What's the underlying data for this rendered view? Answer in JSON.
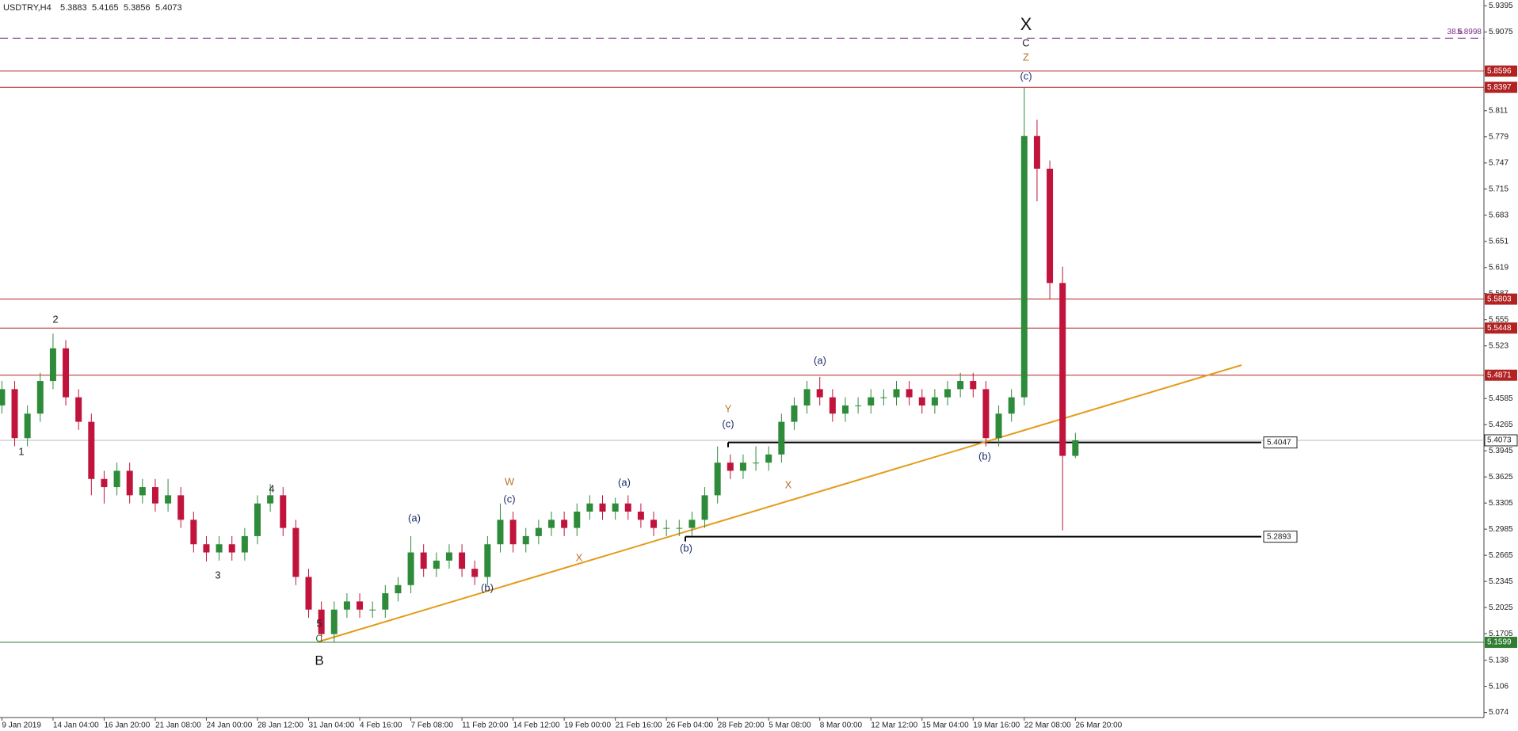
{
  "chart_data": {
    "type": "candlestick",
    "symbol": "USDTRY,H4",
    "categories": [
      "9 Jan 2019",
      null,
      null,
      null,
      "14 Jan 04:00",
      null,
      null,
      null,
      "16 Jan 20:00",
      null,
      null,
      null,
      "21 Jan 08:00",
      null,
      null,
      null,
      "24 Jan 00:00",
      null,
      null,
      null,
      "28 Jan 12:00",
      null,
      null,
      null,
      "31 Jan 04:00",
      null,
      null,
      null,
      "4 Feb 16:00",
      null,
      null,
      null,
      "7 Feb 08:00",
      null,
      null,
      null,
      "11 Feb 20:00",
      null,
      null,
      null,
      "14 Feb 12:00",
      null,
      null,
      null,
      "19 Feb 00:00",
      null,
      null,
      null,
      "21 Feb 16:00",
      null,
      null,
      null,
      "26 Feb 04:00",
      null,
      null,
      null,
      "28 Feb 20:00",
      null,
      null,
      null,
      "5 Mar 08:00",
      null,
      null,
      null,
      "8 Mar 00:00",
      null,
      null,
      null,
      "12 Mar 12:00",
      null,
      null,
      null,
      "15 Mar 04:00",
      null,
      null,
      null,
      "19 Mar 16:00",
      null,
      null,
      null,
      "22 Mar 08:00",
      null,
      null,
      null,
      "26 Mar 20:00"
    ],
    "ohlc": [
      [
        5.45,
        5.48,
        5.44,
        5.47
      ],
      [
        5.47,
        5.48,
        5.4,
        5.41
      ],
      [
        5.41,
        5.45,
        5.4,
        5.44
      ],
      [
        5.44,
        5.49,
        5.43,
        5.48
      ],
      [
        5.48,
        5.538,
        5.47,
        5.52
      ],
      [
        5.52,
        5.53,
        5.45,
        5.46
      ],
      [
        5.46,
        5.47,
        5.42,
        5.43
      ],
      [
        5.43,
        5.44,
        5.34,
        5.36
      ],
      [
        5.36,
        5.37,
        5.33,
        5.35
      ],
      [
        5.35,
        5.38,
        5.34,
        5.37
      ],
      [
        5.37,
        5.38,
        5.33,
        5.34
      ],
      [
        5.34,
        5.36,
        5.33,
        5.35
      ],
      [
        5.35,
        5.36,
        5.32,
        5.33
      ],
      [
        5.33,
        5.36,
        5.32,
        5.34
      ],
      [
        5.34,
        5.35,
        5.3,
        5.31
      ],
      [
        5.31,
        5.32,
        5.27,
        5.28
      ],
      [
        5.28,
        5.29,
        5.259,
        5.27
      ],
      [
        5.27,
        5.29,
        5.26,
        5.28
      ],
      [
        5.28,
        5.29,
        5.26,
        5.27
      ],
      [
        5.27,
        5.3,
        5.26,
        5.29
      ],
      [
        5.29,
        5.34,
        5.28,
        5.33
      ],
      [
        5.33,
        5.354,
        5.32,
        5.34
      ],
      [
        5.34,
        5.35,
        5.29,
        5.3
      ],
      [
        5.3,
        5.31,
        5.23,
        5.24
      ],
      [
        5.24,
        5.25,
        5.19,
        5.2
      ],
      [
        5.2,
        5.21,
        5.162,
        5.17
      ],
      [
        5.17,
        5.21,
        5.16,
        5.2
      ],
      [
        5.2,
        5.22,
        5.19,
        5.21
      ],
      [
        5.21,
        5.22,
        5.19,
        5.2
      ],
      [
        5.2,
        5.21,
        5.19,
        5.2
      ],
      [
        5.2,
        5.23,
        5.19,
        5.22
      ],
      [
        5.22,
        5.24,
        5.21,
        5.23
      ],
      [
        5.23,
        5.29,
        5.22,
        5.27
      ],
      [
        5.27,
        5.28,
        5.24,
        5.25
      ],
      [
        5.25,
        5.27,
        5.24,
        5.26
      ],
      [
        5.26,
        5.28,
        5.25,
        5.27
      ],
      [
        5.27,
        5.28,
        5.24,
        5.25
      ],
      [
        5.25,
        5.26,
        5.23,
        5.24
      ],
      [
        5.24,
        5.29,
        5.23,
        5.28
      ],
      [
        5.28,
        5.33,
        5.27,
        5.31
      ],
      [
        5.31,
        5.32,
        5.27,
        5.28
      ],
      [
        5.28,
        5.3,
        5.27,
        5.29
      ],
      [
        5.29,
        5.31,
        5.28,
        5.3
      ],
      [
        5.3,
        5.32,
        5.29,
        5.31
      ],
      [
        5.31,
        5.32,
        5.29,
        5.3
      ],
      [
        5.3,
        5.33,
        5.29,
        5.32
      ],
      [
        5.32,
        5.34,
        5.31,
        5.33
      ],
      [
        5.33,
        5.34,
        5.31,
        5.32
      ],
      [
        5.32,
        5.337,
        5.31,
        5.33
      ],
      [
        5.33,
        5.34,
        5.31,
        5.32
      ],
      [
        5.32,
        5.33,
        5.3,
        5.31
      ],
      [
        5.31,
        5.32,
        5.29,
        5.3
      ],
      [
        5.3,
        5.31,
        5.29,
        5.3
      ],
      [
        5.3,
        5.31,
        5.29,
        5.3
      ],
      [
        5.3,
        5.32,
        5.29,
        5.31
      ],
      [
        5.31,
        5.35,
        5.3,
        5.34
      ],
      [
        5.34,
        5.4,
        5.33,
        5.38
      ],
      [
        5.38,
        5.39,
        5.36,
        5.37
      ],
      [
        5.37,
        5.39,
        5.36,
        5.38
      ],
      [
        5.38,
        5.4,
        5.37,
        5.38
      ],
      [
        5.38,
        5.4,
        5.37,
        5.39
      ],
      [
        5.39,
        5.44,
        5.38,
        5.43
      ],
      [
        5.43,
        5.46,
        5.42,
        5.45
      ],
      [
        5.45,
        5.48,
        5.44,
        5.47
      ],
      [
        5.47,
        5.485,
        5.45,
        5.46
      ],
      [
        5.46,
        5.47,
        5.43,
        5.44
      ],
      [
        5.44,
        5.46,
        5.43,
        5.45
      ],
      [
        5.45,
        5.46,
        5.44,
        5.45
      ],
      [
        5.45,
        5.47,
        5.44,
        5.46
      ],
      [
        5.46,
        5.47,
        5.45,
        5.46
      ],
      [
        5.46,
        5.48,
        5.45,
        5.47
      ],
      [
        5.47,
        5.48,
        5.45,
        5.46
      ],
      [
        5.46,
        5.47,
        5.44,
        5.45
      ],
      [
        5.45,
        5.47,
        5.44,
        5.46
      ],
      [
        5.46,
        5.48,
        5.45,
        5.47
      ],
      [
        5.47,
        5.49,
        5.46,
        5.48
      ],
      [
        5.48,
        5.49,
        5.46,
        5.47
      ],
      [
        5.47,
        5.48,
        5.4,
        5.41
      ],
      [
        5.41,
        5.45,
        5.4,
        5.44
      ],
      [
        5.44,
        5.47,
        5.43,
        5.46
      ],
      [
        5.46,
        5.8397,
        5.45,
        5.78
      ],
      [
        5.78,
        5.8,
        5.7,
        5.74
      ],
      [
        5.74,
        5.75,
        5.58,
        5.6
      ],
      [
        5.6,
        5.62,
        5.297,
        5.3883
      ],
      [
        5.3883,
        5.4165,
        5.3856,
        5.4073
      ]
    ],
    "up_color": "#2e8b3a",
    "down_color": "#c0143c",
    "ylim": [
      5.0678,
      5.9466
    ],
    "yticks": [
      5.9395,
      5.9075,
      5.811,
      5.779,
      5.747,
      5.715,
      5.683,
      5.651,
      5.619,
      5.587,
      5.555,
      5.523,
      5.4585,
      5.4265,
      5.3945,
      5.3625,
      5.3305,
      5.2985,
      5.2665,
      5.2345,
      5.2025,
      5.1705,
      5.138,
      5.106,
      5.074
    ],
    "levels": [
      {
        "value": 5.8596,
        "color": "#b22222"
      },
      {
        "value": 5.8397,
        "color": "#b22222"
      },
      {
        "value": 5.5803,
        "color": "#b22222"
      },
      {
        "value": 5.5448,
        "color": "#b22222"
      },
      {
        "value": 5.4871,
        "color": "#b22222"
      },
      {
        "value": 5.1599,
        "color": "#2e7d32"
      }
    ],
    "bid": 5.4073,
    "support_levels": [
      5.4047,
      5.2893
    ],
    "fib": {
      "label": "38.6",
      "value": 5.8998,
      "color": "#7b2d8b"
    },
    "trendline_color": "#e39b1b",
    "annotations": [
      {
        "text": "1",
        "color": "#222"
      },
      {
        "text": "2",
        "color": "#222"
      },
      {
        "text": "3",
        "color": "#222"
      },
      {
        "text": "4",
        "color": "#222"
      },
      {
        "text": "5",
        "color": "#222"
      },
      {
        "text": "C",
        "color": "#2e7d32"
      },
      {
        "text": "B",
        "color": "#111"
      },
      {
        "text": "(a)",
        "color": "#1f2d6b"
      },
      {
        "text": "(b)",
        "color": "#1f2d6b"
      },
      {
        "text": "(c)",
        "color": "#1f2d6b"
      },
      {
        "text": "W",
        "color": "#b8742a"
      },
      {
        "text": "X",
        "color": "#b8742a"
      },
      {
        "text": "(a)",
        "color": "#1f2d6b"
      },
      {
        "text": "(b)",
        "color": "#1f2d6b"
      },
      {
        "text": "Y",
        "color": "#b8742a"
      },
      {
        "text": "(c)",
        "color": "#1f2d6b"
      },
      {
        "text": "X",
        "color": "#b8742a"
      },
      {
        "text": "(a)",
        "color": "#1f2d6b"
      },
      {
        "text": "(b)",
        "color": "#1f2d6b"
      },
      {
        "text": "X",
        "color": "#111"
      },
      {
        "text": "C",
        "color": "#222"
      },
      {
        "text": "Z",
        "color": "#b8742a"
      },
      {
        "text": "(c)",
        "color": "#1f2d6b"
      }
    ]
  }
}
